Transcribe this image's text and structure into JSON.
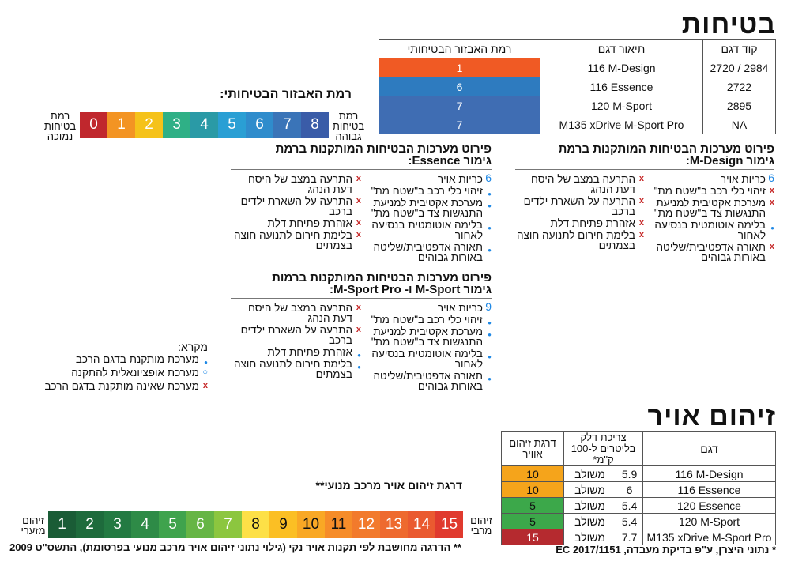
{
  "safety": {
    "title": "בטיחות",
    "headers": [
      "קוד דגם",
      "תיאור דגם",
      "רמת האבזור הבטיחותי"
    ],
    "rows": [
      {
        "code": "2984 / 2720",
        "desc": "116 M-Design",
        "level": "1",
        "color": "#f05a24"
      },
      {
        "code": "2722",
        "desc": "116 Essence",
        "level": "6",
        "color": "#2e7bbf"
      },
      {
        "code": "2895",
        "desc": "120 M-Sport",
        "level": "7",
        "color": "#3f6db3"
      },
      {
        "code": "NA",
        "desc": "M135 xDrive M-Sport Pro",
        "level": "7",
        "color": "#3f6db3"
      }
    ]
  },
  "level_scale": {
    "title": "רמת האבזור הבטיחותי:",
    "high_label": [
      "רמת",
      "בטיחות",
      "גבוהה"
    ],
    "low_label": [
      "רמת",
      "בטיחות",
      "נמוכה"
    ],
    "cells": [
      {
        "v": "8",
        "c": "#3a5ca8"
      },
      {
        "v": "7",
        "c": "#3a74b8"
      },
      {
        "v": "6",
        "c": "#2f8ccc"
      },
      {
        "v": "5",
        "c": "#2a9fd4"
      },
      {
        "v": "4",
        "c": "#2a9aa6"
      },
      {
        "v": "3",
        "c": "#2fb086"
      },
      {
        "v": "2",
        "c": "#f5c21a"
      },
      {
        "v": "1",
        "c": "#f39423"
      },
      {
        "v": "0",
        "c": "#c0272d"
      }
    ]
  },
  "sections": {
    "mdesign": {
      "title1": "פירוט מערכות הבטיחות המותקנות ברמת",
      "title2": "גימור M-Design:",
      "right": [
        {
          "mark": "num",
          "num": "6",
          "text": "כריות אויר"
        },
        {
          "mark": "x",
          "text": "זיהוי כלי רכב ב\"שטח מת\""
        },
        {
          "mark": "x",
          "text": "מערכת אקטיבית למניעת התנגשות צד ב\"שטח מת\""
        },
        {
          "mark": "dot",
          "text": "בלימה אוטומטית בנסיעה לאחור"
        },
        {
          "mark": "x",
          "text": "תאורה אדפטיבית/שליטה באורות גבוהים"
        }
      ],
      "left": [
        {
          "mark": "x",
          "text": "התרעה במצב של היסח דעת הנהג"
        },
        {
          "mark": "x",
          "text": "התרעה על השארת ילדים ברכב"
        },
        {
          "mark": "x",
          "text": "אזהרת פתיחת דלת"
        },
        {
          "mark": "x",
          "text": "בלימת חירום לתנועה חוצה בצמתים"
        }
      ]
    },
    "essence": {
      "title1": "פירוט מערכות הבטיחות המותקנות ברמת",
      "title2": "גימור Essence:",
      "right": [
        {
          "mark": "num",
          "num": "6",
          "text": "כריות אויר"
        },
        {
          "mark": "dot",
          "text": "זיהוי כלי רכב ב\"שטח מת\""
        },
        {
          "mark": "dot",
          "text": "מערכת אקטיבית למניעת התנגשות צד ב\"שטח מת\""
        },
        {
          "mark": "dot",
          "text": "בלימה אוטומטית בנסיעה לאחור"
        },
        {
          "mark": "dot",
          "text": "תאורה אדפטיבית/שליטה באורות גבוהים"
        }
      ],
      "left": [
        {
          "mark": "x",
          "text": "התרעה במצב של היסח דעת הנהג"
        },
        {
          "mark": "x",
          "text": "התרעה על השארת ילדים ברכב"
        },
        {
          "mark": "x",
          "text": "אזהרת פתיחת דלת"
        },
        {
          "mark": "x",
          "text": "בלימת חירום לתנועה חוצה בצמתים"
        }
      ]
    },
    "msport": {
      "title1": "פירוט מערכות הבטיחות המותקנות ברמות",
      "title2": "גימור M-Sport ו- M-Sport Pro:",
      "right": [
        {
          "mark": "num",
          "num": "9",
          "text": "כריות אויר"
        },
        {
          "mark": "dot",
          "text": "זיהוי כלי רכב ב\"שטח מת\""
        },
        {
          "mark": "dot",
          "text": "מערכת אקטיבית למניעת התנגשות צד ב\"שטח מת\""
        },
        {
          "mark": "dot",
          "text": "בלימה אוטומטית בנסיעה לאחור"
        },
        {
          "mark": "dot",
          "text": "תאורה אדפטיבית/שליטה באורות גבוהים"
        }
      ],
      "left": [
        {
          "mark": "x",
          "text": "התרעה במצב של היסח דעת הנהג"
        },
        {
          "mark": "x",
          "text": "התרעה על השארת ילדים ברכב"
        },
        {
          "mark": "dot",
          "text": "אזהרת פתיחת דלת"
        },
        {
          "mark": "dot",
          "text": "בלימת חירום לתנועה חוצה בצמתים"
        }
      ]
    }
  },
  "legend": {
    "title": "מקרא:",
    "items": [
      {
        "mark": "dot",
        "text": "מערכת מותקנת בדגם הרכב"
      },
      {
        "mark": "ring",
        "text": "מערכת אופציונאלית להתקנה"
      },
      {
        "mark": "x",
        "text": "מערכת שאינה מותקנת בדגם הרכב"
      }
    ]
  },
  "air": {
    "title": "זיהום אויר",
    "headers": {
      "model": "דגם",
      "fuel": "צריכת דלק בליטרים ל-100 ק\"מ*",
      "grade": "דרגת זיהום אוויר"
    },
    "rows": [
      {
        "model": "116 M-Design",
        "value": "5.9",
        "type": "משולב",
        "grade": "10",
        "color": "#f5a41b"
      },
      {
        "model": "116 Essence",
        "value": "6",
        "type": "משולב",
        "grade": "10",
        "color": "#f5a41b"
      },
      {
        "model": "120 Essence",
        "value": "5.4",
        "type": "משולב",
        "grade": "5",
        "color": "#3ca84a"
      },
      {
        "model": "120 M-Sport",
        "value": "5.4",
        "type": "משולב",
        "grade": "5",
        "color": "#3ca84a"
      },
      {
        "model": "M135 xDrive M-Sport Pro",
        "value": "7.7",
        "type": "משולב",
        "grade": "15",
        "color": "#b52a2f"
      }
    ],
    "footnote": "* נתוני היצרן, ע\"פ בדיקת מעבדה, EC 2017/1151"
  },
  "air_scale": {
    "title": "דרגת זיהום אויר מרכב מנועי**",
    "max_label": [
      "זיהום",
      "מרבי"
    ],
    "min_label": [
      "זיהום",
      "מזערי"
    ],
    "cells": [
      {
        "v": "15",
        "c": "#e03a2e"
      },
      {
        "v": "14",
        "c": "#ea5a30"
      },
      {
        "v": "13",
        "c": "#ee6a2f"
      },
      {
        "v": "12",
        "c": "#f27a2c"
      },
      {
        "v": "11",
        "c": "#f68c29"
      },
      {
        "v": "10",
        "c": "#f9a825"
      },
      {
        "v": "9",
        "c": "#fbbf24"
      },
      {
        "v": "8",
        "c": "#fde047"
      },
      {
        "v": "7",
        "c": "#8cc63f"
      },
      {
        "v": "6",
        "c": "#66b545"
      },
      {
        "v": "5",
        "c": "#3fa34d"
      },
      {
        "v": "4",
        "c": "#2e8b47"
      },
      {
        "v": "3",
        "c": "#237a42"
      },
      {
        "v": "2",
        "c": "#1e6b3c"
      },
      {
        "v": "1",
        "c": "#1a5c36"
      }
    ],
    "footnote": "** הדרגה מחושבת לפי תקנות אויר נקי (גילוי נתוני זיהום אויר מרכב מנועי בפרסומת), התשס\"ט 2009"
  }
}
